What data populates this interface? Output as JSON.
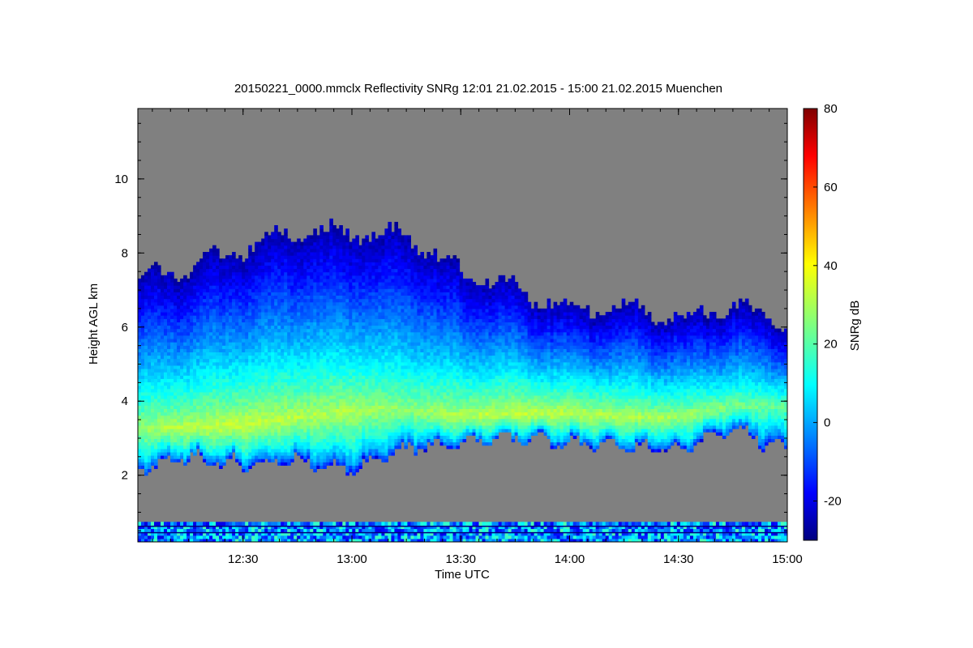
{
  "chart_data": {
    "type": "heatmap",
    "title": "20150221_0000.mmclx Reflectivity SNRg   12:01 21.02.2015 - 15:00 21.02.2015 Muenchen",
    "xlabel": "Time UTC",
    "ylabel": "Height AGL km",
    "x_range_hours": [
      12.0167,
      15.0
    ],
    "x_ticks": [
      {
        "value": 12.5,
        "label": "12:30"
      },
      {
        "value": 13.0,
        "label": "13:00"
      },
      {
        "value": 13.5,
        "label": "13:30"
      },
      {
        "value": 14.0,
        "label": "14:00"
      },
      {
        "value": 14.5,
        "label": "14:30"
      },
      {
        "value": 15.0,
        "label": "15:00"
      }
    ],
    "y_range_km": [
      0.2,
      11.9
    ],
    "y_ticks": [
      2,
      4,
      6,
      8,
      10
    ],
    "background_color": "#808080",
    "colorbar": {
      "label": "SNRg dB",
      "range": [
        -30,
        80
      ],
      "ticks": [
        -20,
        0,
        20,
        40,
        60,
        80
      ],
      "colormap": "jet"
    },
    "cloud_layer": {
      "times": [
        12.0167,
        12.25,
        12.5,
        12.75,
        13.0,
        13.25,
        13.5,
        13.75,
        14.0,
        14.25,
        14.5,
        14.75,
        15.0
      ],
      "base_km": [
        2.2,
        2.5,
        2.3,
        2.4,
        2.2,
        2.7,
        2.9,
        3.0,
        2.9,
        2.8,
        2.7,
        3.3,
        2.6
      ],
      "top_km": [
        7.3,
        7.6,
        8.1,
        8.6,
        8.5,
        8.5,
        7.5,
        7.0,
        6.5,
        6.6,
        6.2,
        6.6,
        6.1
      ],
      "max_snr_height_km": [
        3.3,
        3.3,
        3.4,
        3.6,
        3.8,
        3.8,
        3.6,
        3.7,
        3.7,
        3.6,
        3.6,
        3.9,
        3.9
      ],
      "max_snr_db": [
        28,
        32,
        33,
        31,
        30,
        27,
        31,
        33,
        32,
        31,
        29,
        25,
        22
      ]
    },
    "ground_clutter_top_km": 0.7
  }
}
